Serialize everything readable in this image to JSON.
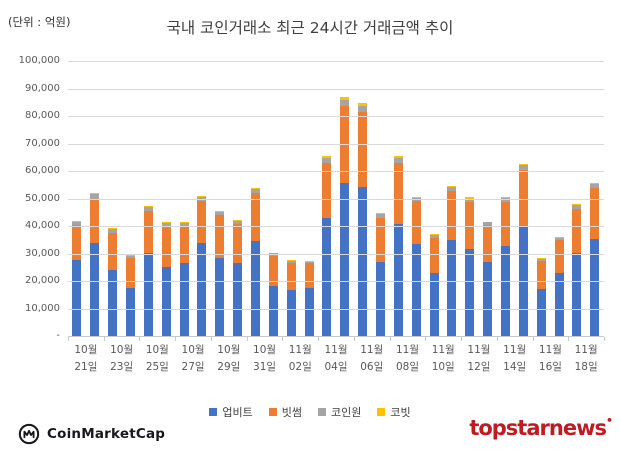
{
  "unit_label": "(단위 : 억원)",
  "title": "국내 코인거래소 최근 24시간 거래금액 추이",
  "footer": {
    "coinmarketcap": "CoinMarketCap",
    "topstarnews": "topstarnews",
    "topstarnews_color": "#c01a23",
    "coinmarketcap_color": "#17181c"
  },
  "chart_data": {
    "type": "bar",
    "stacked": true,
    "title": "국내 코인거래소 최근 24시간 거래금액 추이",
    "unit": "억원",
    "ylabel": "",
    "xlabel": "",
    "ylim": [
      0,
      100000
    ],
    "ytick_step": 10000,
    "ytick_labels_top_down": [
      "100,000",
      "90,000",
      "80,000",
      "70,000",
      "60,000",
      "50,000",
      "40,000",
      "30,000",
      "20,000",
      "10,000",
      "-"
    ],
    "grid": true,
    "legend_position": "bottom",
    "categories": [
      "10월 21일",
      "10월 22일",
      "10월 23일",
      "10월 24일",
      "10월 25일",
      "10월 26일",
      "10월 27일",
      "10월 28일",
      "10월 29일",
      "10월 30일",
      "10월 31일",
      "11월 01일",
      "11월 02일",
      "11월 03일",
      "11월 04일",
      "11월 05일",
      "11월 06일",
      "11월 07일",
      "11월 08일",
      "11월 09일",
      "11월 10일",
      "11월 11일",
      "11월 12일",
      "11월 13일",
      "11월 14일",
      "11월 15일",
      "11월 16일",
      "11월 17일",
      "11월 18일",
      "11월 19일"
    ],
    "visible_x_labels": [
      [
        "10월",
        "21일"
      ],
      [
        "10월",
        "23일"
      ],
      [
        "10월",
        "25일"
      ],
      [
        "10월",
        "27일"
      ],
      [
        "10월",
        "29일"
      ],
      [
        "10월",
        "31일"
      ],
      [
        "11월",
        "02일"
      ],
      [
        "11월",
        "04일"
      ],
      [
        "11월",
        "06일"
      ],
      [
        "11월",
        "08일"
      ],
      [
        "11월",
        "10일"
      ],
      [
        "11월",
        "12일"
      ],
      [
        "11월",
        "14일"
      ],
      [
        "11월",
        "16일"
      ],
      [
        "11월",
        "18일"
      ]
    ],
    "series": [
      {
        "name": "업비트",
        "color": "#4472c4",
        "values": [
          27500,
          33700,
          24000,
          17300,
          30300,
          25000,
          26700,
          33700,
          28200,
          26700,
          34700,
          18200,
          16700,
          17300,
          42800,
          55500,
          54100,
          27000,
          40700,
          33500,
          23000,
          34900,
          31500,
          27000,
          32700,
          40000,
          17000,
          23000,
          30100,
          35200
        ]
      },
      {
        "name": "빗썸",
        "color": "#ed7d31",
        "values": [
          13000,
          15600,
          13300,
          10900,
          15300,
          14800,
          13000,
          15500,
          15800,
          14100,
          17200,
          10900,
          9700,
          9200,
          20200,
          28100,
          27300,
          15800,
          22100,
          15500,
          12600,
          17800,
          17100,
          13200,
          16000,
          20500,
          10100,
          11900,
          16200,
          18700
        ]
      },
      {
        "name": "코인원",
        "color": "#a5a5a5",
        "values": [
          1100,
          2300,
          1500,
          1000,
          1400,
          1200,
          1500,
          1300,
          1100,
          1200,
          1500,
          1000,
          900,
          600,
          1700,
          2400,
          2400,
          1400,
          1900,
          1300,
          1200,
          1400,
          1400,
          1100,
          1400,
          1600,
          800,
          900,
          1400,
          1500
        ]
      },
      {
        "name": "코빗",
        "color": "#ffc000",
        "values": [
          400,
          500,
          400,
          300,
          300,
          300,
          300,
          400,
          400,
          300,
          500,
          200,
          300,
          300,
          800,
          800,
          800,
          400,
          800,
          400,
          300,
          400,
          400,
          300,
          300,
          400,
          300,
          300,
          300,
          400
        ]
      }
    ]
  }
}
